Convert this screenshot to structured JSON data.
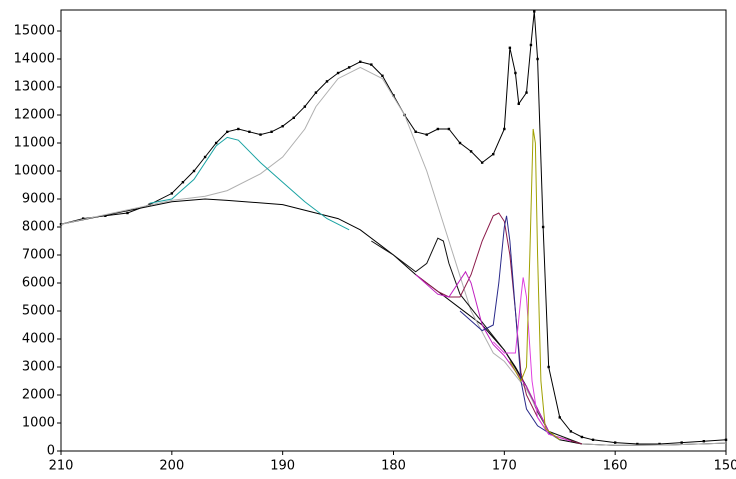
{
  "chart_data": {
    "type": "line",
    "xlim": [
      210,
      150
    ],
    "xticks": [
      210,
      200,
      190,
      180,
      170,
      160,
      150
    ],
    "ylim": [
      0,
      15750
    ],
    "yticks": [
      0,
      1000,
      2000,
      3000,
      4000,
      5000,
      6000,
      7000,
      8000,
      9000,
      10000,
      11000,
      12000,
      13000,
      14000,
      15000
    ],
    "grid": false,
    "series": [
      {
        "color": "#000000",
        "markers": true,
        "x": [
          210,
          208,
          206,
          204,
          202,
          200,
          199,
          198,
          197,
          196,
          195,
          194,
          193,
          192,
          191,
          190,
          189,
          188,
          187,
          186,
          185,
          184,
          183,
          182,
          181,
          180,
          179,
          178,
          177,
          176,
          175,
          174,
          173,
          172,
          171,
          170,
          169.5,
          169,
          168.7,
          168,
          167.6,
          167.3,
          167,
          166.5,
          166,
          165,
          164,
          163,
          162,
          160,
          158,
          156,
          154,
          152,
          150
        ],
        "values": [
          8100,
          8300,
          8400,
          8500,
          8800,
          9200,
          9600,
          10000,
          10500,
          11000,
          11400,
          11500,
          11400,
          11300,
          11400,
          11600,
          11900,
          12300,
          12800,
          13200,
          13500,
          13700,
          13900,
          13800,
          13400,
          12700,
          12000,
          11400,
          11300,
          11500,
          11500,
          11000,
          10700,
          10300,
          10600,
          11500,
          14400,
          13500,
          12400,
          12800,
          14500,
          15700,
          14000,
          8000,
          3000,
          1200,
          700,
          500,
          400,
          300,
          250,
          250,
          300,
          350,
          400
        ]
      },
      {
        "color": "#000000",
        "x": [
          210,
          205,
          200,
          197,
          195,
          190,
          185,
          183,
          180,
          178,
          176,
          174,
          172,
          170,
          169,
          168,
          167,
          166,
          165,
          163,
          160,
          155,
          150
        ],
        "values": [
          8100,
          8500,
          8900,
          9000,
          8950,
          8800,
          8300,
          7900,
          7000,
          6300,
          5700,
          5100,
          4500,
          3600,
          3000,
          2300,
          1400,
          700,
          400,
          250,
          200,
          220,
          280
        ]
      },
      {
        "color": "#b0b0b0",
        "x": [
          210,
          200,
          197,
          195,
          192,
          190,
          188,
          187,
          185,
          183,
          181,
          179,
          177,
          175,
          173,
          171,
          170,
          168,
          166,
          163,
          160,
          155,
          150
        ],
        "values": [
          8100,
          8950,
          9100,
          9300,
          9900,
          10500,
          11500,
          12300,
          13300,
          13700,
          13300,
          12000,
          10000,
          7500,
          5000,
          3500,
          3200,
          2200,
          700,
          250,
          200,
          220,
          280
        ]
      },
      {
        "color": "#1aa3a3",
        "x": [
          202,
          200,
          198,
          196,
          195,
          194,
          192,
          190,
          188,
          186,
          184
        ],
        "values": [
          8850,
          9000,
          9700,
          10900,
          11200,
          11100,
          10300,
          9600,
          8900,
          8300,
          7900
        ]
      },
      {
        "color": "#111111",
        "x": [
          182,
          180,
          178,
          177,
          176,
          175.5,
          175,
          174,
          172,
          170,
          168,
          166,
          163
        ],
        "values": [
          7500,
          7000,
          6400,
          6700,
          7600,
          7500,
          6700,
          5600,
          4600,
          3600,
          2300,
          700,
          250
        ]
      },
      {
        "color": "#8b1a4a",
        "x": [
          178,
          176,
          175,
          174,
          173,
          172,
          171,
          170.5,
          170,
          169.5,
          169,
          168.5,
          168,
          167,
          166,
          163
        ],
        "values": [
          6300,
          5700,
          5500,
          5500,
          6300,
          7500,
          8400,
          8500,
          8200,
          7000,
          5000,
          2800,
          2000,
          1200,
          600,
          250
        ]
      },
      {
        "color": "#c020c0",
        "x": [
          178,
          176,
          175,
          174,
          173.5,
          173,
          172,
          171,
          170,
          168,
          166
        ],
        "values": [
          6300,
          5600,
          5500,
          6100,
          6400,
          6000,
          4500,
          3800,
          3400,
          2300,
          700
        ]
      },
      {
        "color": "#2a2a8a",
        "x": [
          174,
          172,
          171,
          170.5,
          170,
          169.8,
          169.5,
          169,
          168.5,
          168,
          167,
          165
        ],
        "values": [
          5000,
          4300,
          4500,
          6000,
          8000,
          8400,
          7500,
          5000,
          2500,
          1500,
          900,
          400
        ]
      },
      {
        "color": "#e040e0",
        "x": [
          171,
          170,
          169,
          168.5,
          168.3,
          168,
          167.5,
          167,
          166,
          164
        ],
        "values": [
          3900,
          3500,
          3500,
          5500,
          6200,
          5500,
          2500,
          1200,
          600,
          350
        ]
      },
      {
        "color": "#a0a000",
        "x": [
          169.5,
          168.5,
          168,
          167.7,
          167.4,
          167.2,
          167,
          166.7,
          166.3,
          165
        ],
        "values": [
          3200,
          2500,
          3000,
          7000,
          11500,
          11000,
          7000,
          2500,
          800,
          400
        ]
      }
    ]
  }
}
